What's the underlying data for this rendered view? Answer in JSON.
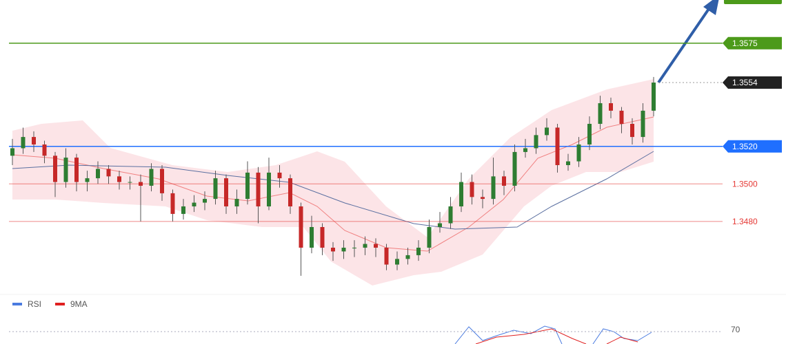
{
  "chart_data": {
    "type": "candlestick",
    "ylim": [
      1.3444,
      1.3598
    ],
    "up_color": "#2e7d32",
    "down_color": "#c62828",
    "wick_color": "#555555",
    "open": [
      1.3515,
      1.3519,
      1.3525,
      1.3521,
      1.3515,
      1.3501,
      1.3514,
      1.3501,
      1.3503,
      1.3508,
      1.3504,
      1.3501,
      1.3501,
      1.3499,
      1.3508,
      1.3495,
      1.3484,
      1.3488,
      1.349,
      1.3492,
      1.3503,
      1.3488,
      1.3492,
      1.3506,
      1.3488,
      1.3506,
      1.3503,
      1.3488,
      1.3466,
      1.3477,
      1.3466,
      1.3464,
      1.3466,
      1.3466,
      1.3468,
      1.3466,
      1.3457,
      1.346,
      1.3462,
      1.3466,
      1.3477,
      1.3479,
      1.3488,
      1.3501,
      1.3493,
      1.3492,
      1.3504,
      1.3499,
      1.3517,
      1.3519,
      1.3526,
      1.353,
      1.351,
      1.3512,
      1.3521,
      1.3532,
      1.3543,
      1.3539,
      1.3532,
      1.3525,
      1.3539
    ],
    "high": [
      1.3524,
      1.353,
      1.3528,
      1.3523,
      1.3517,
      1.3519,
      1.3516,
      1.3507,
      1.3512,
      1.351,
      1.3507,
      1.3504,
      1.3505,
      1.3511,
      1.351,
      1.3497,
      1.3492,
      1.3494,
      1.3496,
      1.3507,
      1.3505,
      1.3497,
      1.3512,
      1.3509,
      1.3514,
      1.351,
      1.3505,
      1.349,
      1.3483,
      1.3479,
      1.3469,
      1.347,
      1.347,
      1.3472,
      1.3471,
      1.3468,
      1.3464,
      1.3466,
      1.347,
      1.3481,
      1.3485,
      1.3493,
      1.3506,
      1.3505,
      1.3497,
      1.3514,
      1.3507,
      1.3521,
      1.3524,
      1.353,
      1.3535,
      1.3532,
      1.3516,
      1.3525,
      1.3536,
      1.3547,
      1.3546,
      1.3541,
      1.3535,
      1.3543,
      1.3557
    ],
    "low": [
      1.351,
      1.3516,
      1.3517,
      1.3511,
      1.3493,
      1.3498,
      1.3496,
      1.3496,
      1.35,
      1.35,
      1.3497,
      1.3497,
      1.348,
      1.3496,
      1.3491,
      1.348,
      1.3481,
      1.3485,
      1.3486,
      1.3489,
      1.3484,
      1.3484,
      1.3489,
      1.3479,
      1.3486,
      1.3498,
      1.3484,
      1.3451,
      1.3463,
      1.3462,
      1.3459,
      1.346,
      1.3461,
      1.3462,
      1.3461,
      1.3454,
      1.3454,
      1.3457,
      1.3459,
      1.3463,
      1.3474,
      1.3476,
      1.3485,
      1.3489,
      1.3487,
      1.3489,
      1.3494,
      1.3496,
      1.3514,
      1.3516,
      1.3523,
      1.3506,
      1.3507,
      1.3509,
      1.3518,
      1.3529,
      1.3535,
      1.3527,
      1.3521,
      1.3522,
      1.3536
    ],
    "close": [
      1.3519,
      1.3525,
      1.3521,
      1.3515,
      1.3501,
      1.3514,
      1.3501,
      1.3503,
      1.3508,
      1.3504,
      1.3501,
      1.3501,
      1.3499,
      1.3508,
      1.3495,
      1.3484,
      1.3488,
      1.349,
      1.3492,
      1.3503,
      1.3488,
      1.3492,
      1.3506,
      1.3488,
      1.3506,
      1.3503,
      1.3488,
      1.3466,
      1.3477,
      1.3466,
      1.3464,
      1.3466,
      1.3466,
      1.3468,
      1.3466,
      1.3457,
      1.346,
      1.3462,
      1.3466,
      1.3477,
      1.3479,
      1.3488,
      1.3501,
      1.3493,
      1.3492,
      1.3504,
      1.3499,
      1.3517,
      1.3519,
      1.3526,
      1.353,
      1.351,
      1.3512,
      1.3521,
      1.3532,
      1.3543,
      1.3539,
      1.3532,
      1.3525,
      1.3539,
      1.3554
    ],
    "levels": [
      {
        "value": 1.3575,
        "color": "#4c9a1a",
        "style": "solid",
        "box": true
      },
      {
        "value": 1.3554,
        "color": "#222222",
        "style": "dotted",
        "box": true
      },
      {
        "value": 1.352,
        "label": "1.3520",
        "color": "#1f6fff",
        "style": "solid",
        "box": true
      },
      {
        "value": 1.35,
        "label": "1.3500",
        "color": "#e53935",
        "style": "solid",
        "box": false
      },
      {
        "value": 1.348,
        "label": "1.3480",
        "color": "#e53935",
        "style": "solid",
        "box": false
      }
    ],
    "indicator": {
      "legend": [
        {
          "name": "RSI",
          "color": "#4a7be0"
        },
        {
          "name": "9MA",
          "color": "#e02020"
        }
      ],
      "yticks": [
        70
      ]
    }
  }
}
